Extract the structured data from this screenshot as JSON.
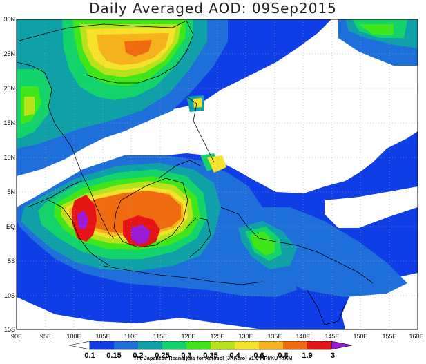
{
  "title": "Daily Averaged AOD: 09Sep2015",
  "credit": "The Japanese Reanalysis for Aerosol (JRAero) v1.0 MRI/KU RIAM",
  "map": {
    "region": "Maritime Southeast Asia",
    "lon_range": [
      90,
      160
    ],
    "lat_range": [
      -15,
      30
    ],
    "gridlines": true,
    "lat_labels": [
      "30N",
      "25N",
      "20N",
      "15N",
      "10N",
      "5N",
      "EQ",
      "5S",
      "10S",
      "15S"
    ],
    "lon_labels": [
      "90E",
      "95E",
      "100E",
      "105E",
      "110E",
      "115E",
      "120E",
      "125E",
      "130E",
      "135E",
      "140E",
      "145E",
      "150E",
      "155E",
      "160E"
    ]
  },
  "colorbar": {
    "levels": [
      "0.1",
      "0.15",
      "0.2",
      "0.25",
      "0.3",
      "0.35",
      "0.4",
      "0.6",
      "0.8",
      "1.9",
      "3"
    ],
    "colors": [
      "#0f3de6",
      "#1e6fd9",
      "#0fa0a8",
      "#12d46a",
      "#3ee61a",
      "#b8e21a",
      "#f4e32a",
      "#f5b21a",
      "#f06b10",
      "#e61414",
      "#9a1bd6"
    ]
  }
}
